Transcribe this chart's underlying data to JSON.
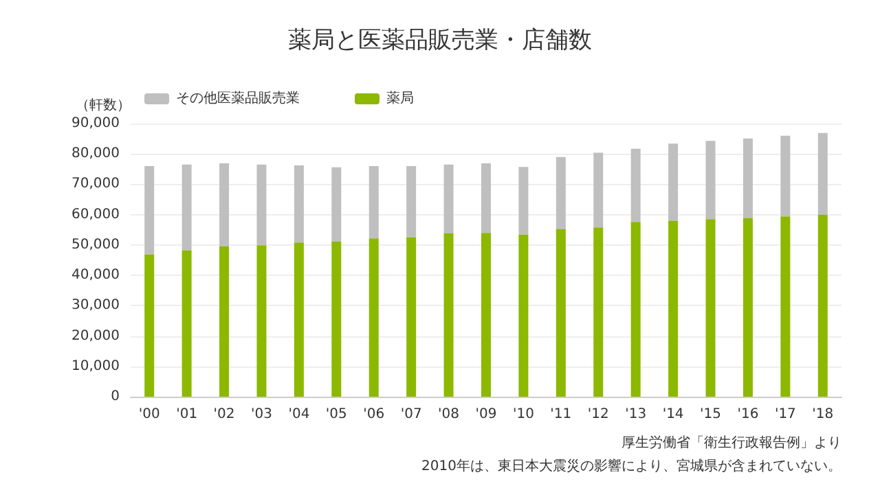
{
  "chart_data": {
    "type": "bar",
    "title": "薬局と医薬品販売業・店舗数",
    "ylabel": "（軒数）",
    "stacked": true,
    "categories": [
      "'00",
      "'01",
      "'02",
      "'03",
      "'04",
      "'05",
      "'06",
      "'07",
      "'08",
      "'09",
      "'10",
      "'11",
      "'12",
      "'13",
      "'14",
      "'15",
      "'16",
      "'17",
      "'18"
    ],
    "series": [
      {
        "name": "薬局",
        "color": "#8cb800",
        "values": [
          46900,
          48300,
          49500,
          49900,
          50800,
          51100,
          52200,
          52600,
          53800,
          54000,
          53400,
          55200,
          55800,
          57600,
          57900,
          58500,
          58800,
          59400,
          59900
        ]
      },
      {
        "name": "その他医薬品販売業",
        "color": "#bfbfbf",
        "values": [
          29100,
          28200,
          27400,
          26600,
          25400,
          24500,
          23800,
          23400,
          22700,
          22900,
          22300,
          23800,
          24600,
          24100,
          25500,
          25800,
          26300,
          26600,
          27000
        ]
      }
    ],
    "ylim": [
      0,
      90000
    ],
    "yticks": [
      0,
      {
        "value": 10000,
        "label": "10,000"
      },
      {
        "value": 20000,
        "label": "20,000"
      },
      {
        "value": 30000,
        "label": "30,000"
      },
      {
        "value": 40000,
        "label": "40,000"
      },
      {
        "value": 50000,
        "label": "50,000"
      },
      {
        "value": 60000,
        "label": "60,000"
      },
      {
        "value": 70000,
        "label": "70,000"
      },
      {
        "value": 80000,
        "label": "80,000"
      },
      {
        "value": 90000,
        "label": "90,000"
      }
    ],
    "grid": "y",
    "legend": "top left",
    "annotations": [
      "厚生労働省「衛生行政報告例」より",
      "2010年は、東日本大震災の影響により、宮城県が含まれていない。"
    ]
  }
}
